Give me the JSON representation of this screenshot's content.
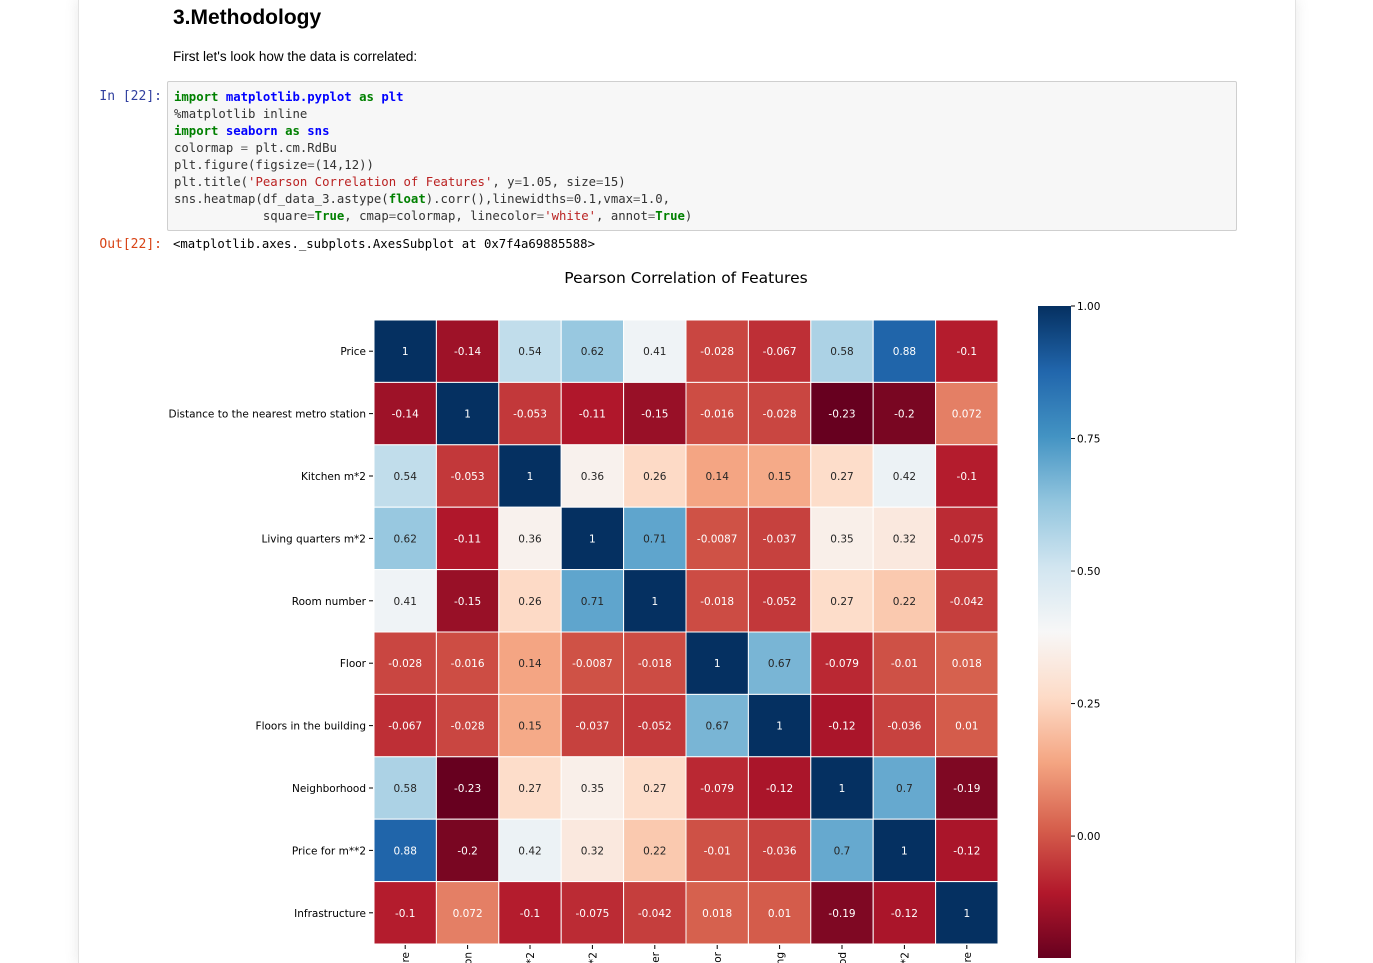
{
  "markdown": {
    "heading": "3.Methodology",
    "paragraph": "First let's look how the data is correlated:"
  },
  "cell": {
    "in_prompt": "In [22]:",
    "out_prompt": "Out[22]:",
    "output_repr": "<matplotlib.axes._subplots.AxesSubplot at 0x7f4a69885588>",
    "code_lines": [
      [
        [
          "k",
          "import"
        ],
        [
          "t",
          " "
        ],
        [
          "nn",
          "matplotlib.pyplot"
        ],
        [
          "t",
          " "
        ],
        [
          "k",
          "as"
        ],
        [
          "t",
          " "
        ],
        [
          "nn",
          "plt"
        ]
      ],
      [
        [
          "t",
          "%matplotlib inline"
        ]
      ],
      [
        [
          "k",
          "import"
        ],
        [
          "t",
          " "
        ],
        [
          "nn",
          "seaborn"
        ],
        [
          "t",
          " "
        ],
        [
          "k",
          "as"
        ],
        [
          "t",
          " "
        ],
        [
          "nn",
          "sns"
        ]
      ],
      [
        [
          "t",
          "colormap "
        ],
        [
          "o",
          "="
        ],
        [
          "t",
          " plt.cm.RdBu"
        ]
      ],
      [
        [
          "t",
          "plt.figure(figsize"
        ],
        [
          "o",
          "="
        ],
        [
          "t",
          "(14,12))"
        ]
      ],
      [
        [
          "t",
          "plt.title("
        ],
        [
          "s",
          "'Pearson Correlation of Features'"
        ],
        [
          "t",
          ", y"
        ],
        [
          "o",
          "="
        ],
        [
          "t",
          "1.05, size"
        ],
        [
          "o",
          "="
        ],
        [
          "t",
          "15)"
        ]
      ],
      [
        [
          "t",
          "sns.heatmap(df_data_3.astype("
        ],
        [
          "k",
          "float"
        ],
        [
          "t",
          ").corr(),linewidths"
        ],
        [
          "o",
          "="
        ],
        [
          "t",
          "0.1,vmax"
        ],
        [
          "o",
          "="
        ],
        [
          "t",
          "1.0,"
        ]
      ],
      [
        [
          "t",
          "            square"
        ],
        [
          "o",
          "="
        ],
        [
          "k",
          "True"
        ],
        [
          "t",
          ", cmap"
        ],
        [
          "o",
          "="
        ],
        [
          "t",
          "colormap, linecolor"
        ],
        [
          "o",
          "="
        ],
        [
          "s",
          "'white'"
        ],
        [
          "t",
          ", annot"
        ],
        [
          "o",
          "="
        ],
        [
          "k",
          "True"
        ],
        [
          "t",
          ")"
        ]
      ]
    ]
  },
  "chart_data": {
    "type": "heatmap",
    "title": "Pearson Correlation of Features",
    "rows": [
      "Price",
      "Distance to the nearest metro station",
      "Kitchen m*2",
      "Living quarters m*2",
      "Room number",
      "Floor",
      "Floors in the building",
      "Neighborhood",
      "Price for m**2",
      "Infrastructure"
    ],
    "col_tick_labels": [
      "re",
      "on",
      "*2",
      "*2",
      "er",
      "or",
      "ng",
      "od",
      "*2",
      "re"
    ],
    "values": [
      [
        1,
        -0.14,
        0.54,
        0.62,
        0.41,
        -0.028,
        -0.067,
        0.58,
        0.88,
        -0.1
      ],
      [
        -0.14,
        1,
        -0.053,
        -0.11,
        -0.15,
        -0.016,
        -0.028,
        -0.23,
        -0.2,
        0.072
      ],
      [
        0.54,
        -0.053,
        1,
        0.36,
        0.26,
        0.14,
        0.15,
        0.27,
        0.42,
        -0.1
      ],
      [
        0.62,
        -0.11,
        0.36,
        1,
        0.71,
        -0.0087,
        -0.037,
        0.35,
        0.32,
        -0.075
      ],
      [
        0.41,
        -0.15,
        0.26,
        0.71,
        1,
        -0.018,
        -0.052,
        0.27,
        0.22,
        -0.042
      ],
      [
        -0.028,
        -0.016,
        0.14,
        -0.0087,
        -0.018,
        1,
        0.67,
        -0.079,
        -0.01,
        0.018
      ],
      [
        -0.067,
        -0.028,
        0.15,
        -0.037,
        -0.052,
        0.67,
        1,
        -0.12,
        -0.036,
        0.01
      ],
      [
        0.58,
        -0.23,
        0.27,
        0.35,
        0.27,
        -0.079,
        -0.12,
        1,
        0.7,
        -0.19
      ],
      [
        0.88,
        -0.2,
        0.42,
        0.32,
        0.22,
        -0.01,
        -0.036,
        0.7,
        1,
        -0.12
      ],
      [
        -0.1,
        0.072,
        -0.1,
        -0.075,
        -0.042,
        0.018,
        0.01,
        -0.19,
        -0.12,
        1
      ]
    ],
    "vmin": -0.23,
    "vmax": 1.0,
    "colorbar_ticks": [
      "1.00",
      "0.75",
      "0.50",
      "0.25",
      "0.00"
    ],
    "colormap": "RdBu",
    "colormap_stops": [
      "#67001f",
      "#b2182b",
      "#d6604d",
      "#f4a582",
      "#fddbc7",
      "#f7f7f7",
      "#d1e5f0",
      "#92c5de",
      "#4393c3",
      "#2166ac",
      "#053061"
    ],
    "annotations": true,
    "linecolor": "#ffffff"
  }
}
